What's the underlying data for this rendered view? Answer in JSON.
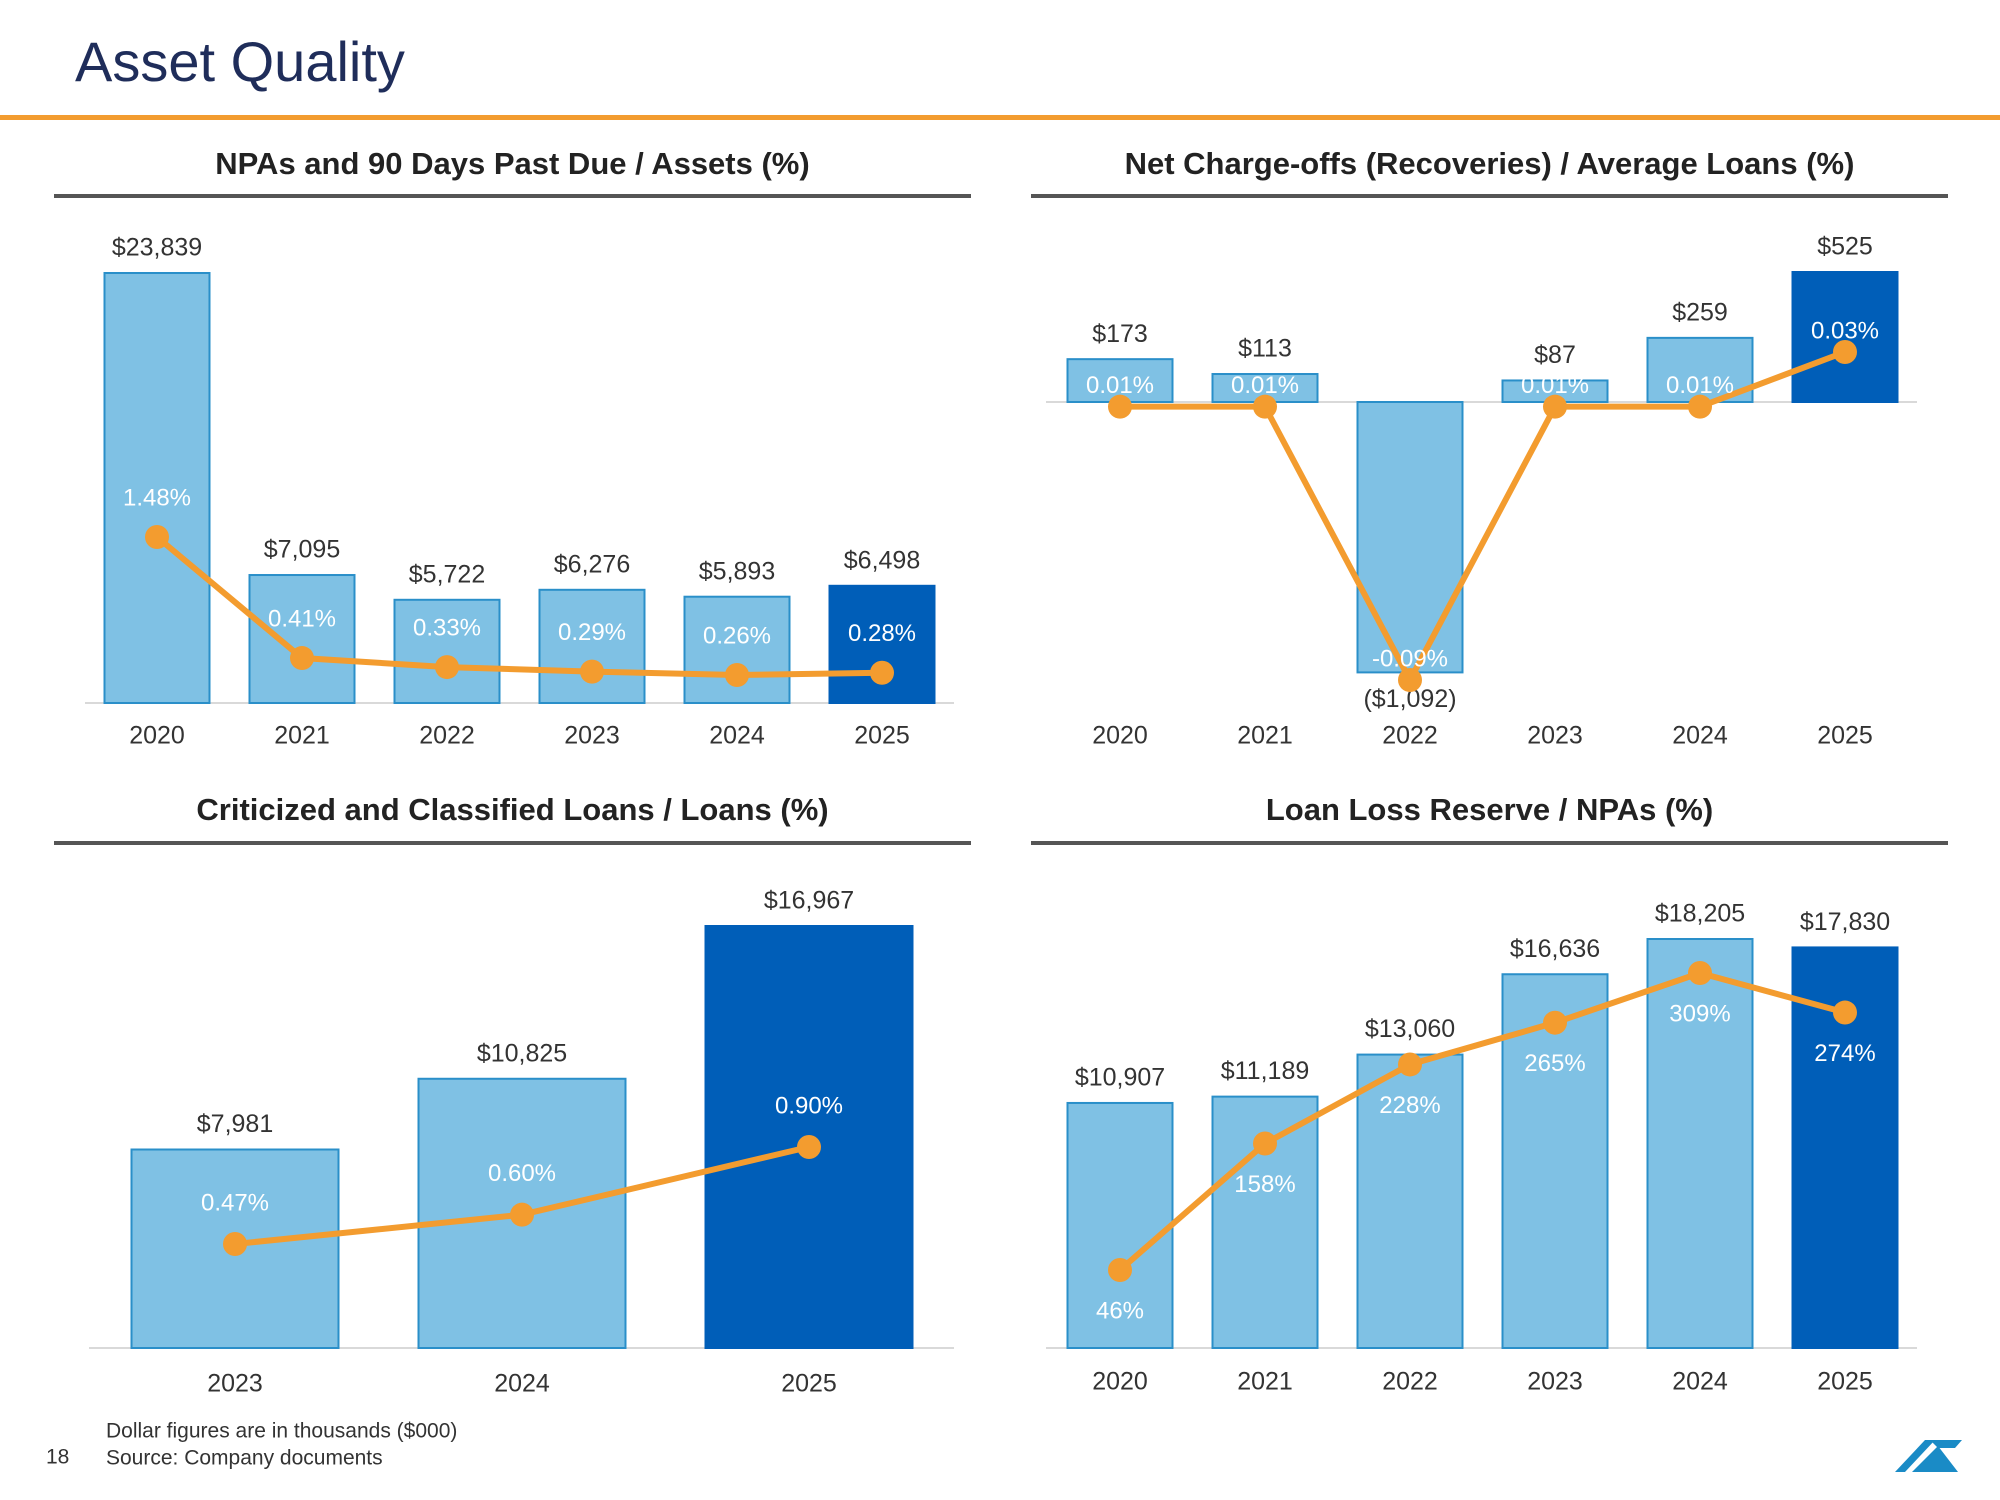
{
  "header": {
    "title": "Asset Quality"
  },
  "page_number": "18",
  "footnotes": [
    "Dollar figures are in thousands ($000)",
    "Source: Company documents"
  ],
  "chart_data": [
    {
      "type": "bar",
      "title": "NPAs and 90 Days Past Due / Assets (%)",
      "categories": [
        "2020",
        "2021",
        "2022",
        "2023",
        "2024",
        "2025"
      ],
      "series": [
        {
          "type": "bar",
          "values": [
            23839,
            7095,
            5722,
            6276,
            5893,
            6498
          ],
          "value_labels": [
            "$23,839",
            "$7,095",
            "$5,722",
            "$6,276",
            "$5,893",
            "$6,498"
          ],
          "colors": [
            "#7fc1e4",
            "#7fc1e4",
            "#7fc1e4",
            "#7fc1e4",
            "#7fc1e4",
            "#005eb8"
          ]
        },
        {
          "type": "line",
          "color": "#f39c2f",
          "values": [
            1.48,
            0.41,
            0.33,
            0.29,
            0.26,
            0.28
          ],
          "value_labels": [
            "1.48%",
            "0.41%",
            "0.33%",
            "0.29%",
            "0.26%",
            "0.28%"
          ]
        }
      ]
    },
    {
      "type": "bar",
      "title": "Net Charge-offs (Recoveries) / Average Loans (%)",
      "categories": [
        "2020",
        "2021",
        "2022",
        "2023",
        "2024",
        "2025"
      ],
      "series": [
        {
          "type": "bar",
          "values": [
            173,
            113,
            -1092,
            87,
            259,
            525
          ],
          "value_labels": [
            "$173",
            "$113",
            "($1,092)",
            "$87",
            "$259",
            "$525"
          ],
          "colors": [
            "#7fc1e4",
            "#7fc1e4",
            "#7fc1e4",
            "#7fc1e4",
            "#7fc1e4",
            "#005eb8"
          ]
        },
        {
          "type": "line",
          "color": "#f39c2f",
          "values": [
            0.01,
            0.01,
            -0.09,
            0.01,
            0.01,
            0.03
          ],
          "value_labels": [
            "0.01%",
            "0.01%",
            "-0.09%",
            "0.01%",
            "0.01%",
            "0.03%"
          ]
        }
      ]
    },
    {
      "type": "bar",
      "title": "Criticized and Classified Loans / Loans (%)",
      "categories": [
        "2023",
        "2024",
        "2025"
      ],
      "series": [
        {
          "type": "bar",
          "values": [
            7981,
            10825,
            16967
          ],
          "value_labels": [
            "$7,981",
            "$10,825",
            "$16,967"
          ],
          "colors": [
            "#7fc1e4",
            "#7fc1e4",
            "#005eb8"
          ]
        },
        {
          "type": "line",
          "color": "#f39c2f",
          "values": [
            0.47,
            0.6,
            0.9
          ],
          "value_labels": [
            "0.47%",
            "0.60%",
            "0.90%"
          ]
        }
      ]
    },
    {
      "type": "bar",
      "title": "Loan Loss Reserve / NPAs (%)",
      "categories": [
        "2020",
        "2021",
        "2022",
        "2023",
        "2024",
        "2025"
      ],
      "series": [
        {
          "type": "bar",
          "values": [
            10907,
            11189,
            13060,
            16636,
            18205,
            17830
          ],
          "value_labels": [
            "$10,907",
            "$11,189",
            "$13,060",
            "$16,636",
            "$18,205",
            "$17,830"
          ],
          "colors": [
            "#7fc1e4",
            "#7fc1e4",
            "#7fc1e4",
            "#7fc1e4",
            "#7fc1e4",
            "#005eb8"
          ]
        },
        {
          "type": "line",
          "color": "#f39c2f",
          "values": [
            46,
            158,
            228,
            265,
            309,
            274
          ],
          "value_labels": [
            "46%",
            "158%",
            "228%",
            "265%",
            "309%",
            "274%"
          ]
        }
      ]
    }
  ]
}
